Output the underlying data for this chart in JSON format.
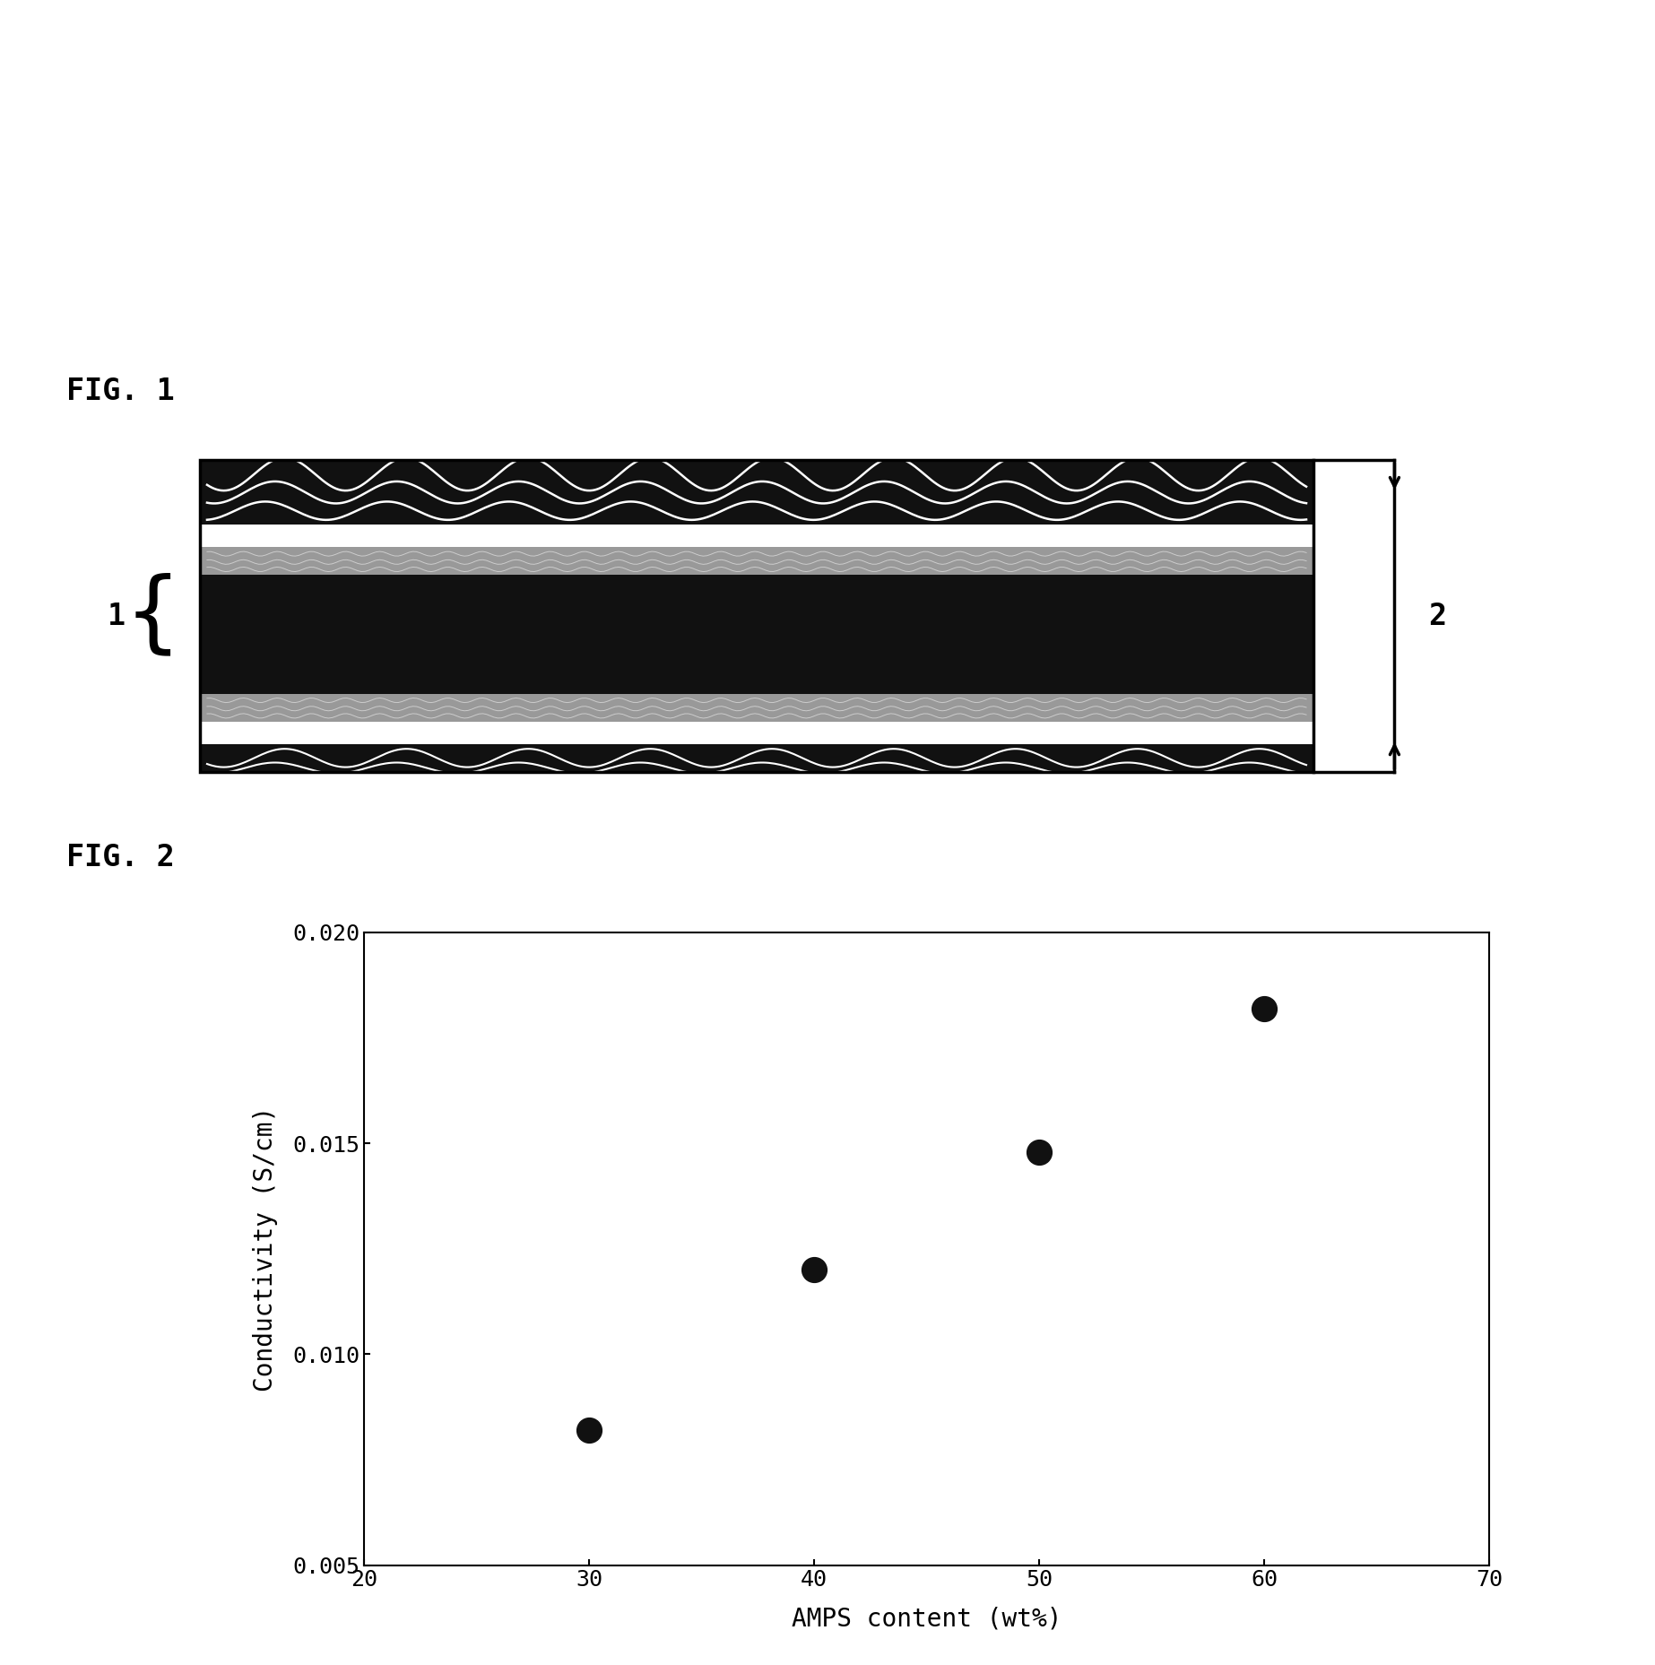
{
  "fig1_label": "FIG. 1",
  "fig2_label": "FIG. 2",
  "label1": "1",
  "label2": "2",
  "scatter_x": [
    30,
    40,
    50,
    60
  ],
  "scatter_y": [
    0.0082,
    0.012,
    0.0148,
    0.0182
  ],
  "xlabel": "AMPS content (wt%)",
  "ylabel": "Conductivity (S/cm)",
  "xlim": [
    20,
    70
  ],
  "ylim": [
    0.005,
    0.02
  ],
  "xticks": [
    20,
    30,
    40,
    50,
    60,
    70
  ],
  "yticks": [
    0.005,
    0.01,
    0.015,
    0.02
  ],
  "ytick_labels": [
    "0.005",
    "0.010",
    "0.015",
    "0.020"
  ],
  "xtick_labels": [
    "20",
    "30",
    "40",
    "50",
    "60",
    "70"
  ],
  "marker_size": 200,
  "marker_color": "#111111",
  "background_color": "#ffffff",
  "fig_label_fontsize": 24,
  "axis_label_fontsize": 20,
  "tick_fontsize": 18
}
